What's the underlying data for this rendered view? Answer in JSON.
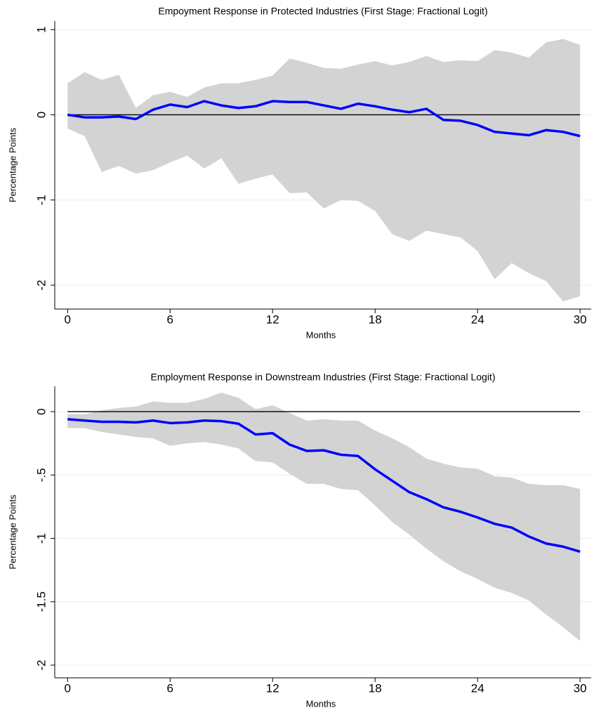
{
  "chart_data": [
    {
      "type": "line",
      "title": "Empoyment Response in Protected Industries (First Stage: Fractional Logit)",
      "xlabel": "Months",
      "ylabel": "Percentage Points",
      "x": [
        0,
        1,
        2,
        3,
        4,
        5,
        6,
        7,
        8,
        9,
        10,
        11,
        12,
        13,
        14,
        15,
        16,
        17,
        18,
        19,
        20,
        21,
        22,
        23,
        24,
        25,
        26,
        27,
        28,
        29,
        30
      ],
      "xlim": [
        -0.75,
        30.65
      ],
      "xticks": [
        0,
        6,
        12,
        18,
        24,
        30
      ],
      "ylim": [
        -2.28,
        1.1
      ],
      "yticks": [
        -2,
        -1,
        0,
        1
      ],
      "grid": true,
      "hline": 0,
      "hline_color": "#000000",
      "band": {
        "color": "#d3d3d3",
        "upper": [
          0.37,
          0.5,
          0.41,
          0.47,
          0.08,
          0.23,
          0.27,
          0.21,
          0.32,
          0.37,
          0.37,
          0.41,
          0.46,
          0.66,
          0.61,
          0.55,
          0.54,
          0.59,
          0.63,
          0.58,
          0.62,
          0.69,
          0.62,
          0.64,
          0.63,
          0.76,
          0.73,
          0.67,
          0.85,
          0.89,
          0.82
        ],
        "lower": [
          -0.16,
          -0.25,
          -0.67,
          -0.6,
          -0.69,
          -0.65,
          -0.56,
          -0.48,
          -0.63,
          -0.51,
          -0.81,
          -0.75,
          -0.7,
          -0.92,
          -0.91,
          -1.1,
          -1.0,
          -1.01,
          -1.13,
          -1.4,
          -1.48,
          -1.36,
          -1.4,
          -1.44,
          -1.6,
          -1.93,
          -1.74,
          -1.86,
          -1.95,
          -2.19,
          -2.13
        ]
      },
      "series": [
        {
          "color": "#0000ff",
          "values": [
            0,
            -0.03,
            -0.03,
            -0.02,
            -0.05,
            0.06,
            0.12,
            0.09,
            0.16,
            0.11,
            0.08,
            0.1,
            0.16,
            0.15,
            0.15,
            0.11,
            0.07,
            0.13,
            0.1,
            0.06,
            0.03,
            0.07,
            -0.06,
            -0.07,
            -0.12,
            -0.2,
            -0.22,
            -0.24,
            -0.18,
            -0.2,
            -0.25
          ]
        }
      ]
    },
    {
      "type": "line",
      "title": "Employment Response in Downstream Industries (First Stage: Fractional Logit)",
      "xlabel": "Months",
      "ylabel": "Percentage Points",
      "x": [
        0,
        1,
        2,
        3,
        4,
        5,
        6,
        7,
        8,
        9,
        10,
        11,
        12,
        13,
        14,
        15,
        16,
        17,
        18,
        19,
        20,
        21,
        22,
        23,
        24,
        25,
        26,
        27,
        28,
        29,
        30
      ],
      "xlim": [
        -0.75,
        30.65
      ],
      "xticks": [
        0,
        6,
        12,
        18,
        24,
        30
      ],
      "ylim": [
        -2.1,
        0.2
      ],
      "yticks": [
        -2,
        -1.5,
        -1,
        {
          "value": -0.5,
          "label": "-.5"
        },
        0
      ],
      "grid": true,
      "hline": 0,
      "hline_color": "#000000",
      "band": {
        "color": "#d3d3d3",
        "upper": [
          -0.02,
          -0.02,
          0.01,
          0.03,
          0.04,
          0.08,
          0.07,
          0.07,
          0.1,
          0.15,
          0.11,
          0.02,
          0.05,
          -0.01,
          -0.07,
          -0.06,
          -0.07,
          -0.07,
          -0.15,
          -0.21,
          -0.28,
          -0.37,
          -0.41,
          -0.44,
          -0.45,
          -0.51,
          -0.52,
          -0.57,
          -0.58,
          -0.58,
          -0.61
        ],
        "lower": [
          -0.13,
          -0.13,
          -0.16,
          -0.18,
          -0.2,
          -0.21,
          -0.27,
          -0.25,
          -0.24,
          -0.26,
          -0.29,
          -0.39,
          -0.4,
          -0.49,
          -0.57,
          -0.57,
          -0.61,
          -0.62,
          -0.74,
          -0.87,
          -0.97,
          -1.08,
          -1.18,
          -1.26,
          -1.32,
          -1.39,
          -1.43,
          -1.49,
          -1.6,
          -1.7,
          -1.81
        ]
      },
      "series": [
        {
          "color": "#0000ff",
          "values": [
            -0.06,
            -0.07,
            -0.08,
            -0.08,
            -0.085,
            -0.07,
            -0.09,
            -0.085,
            -0.07,
            -0.075,
            -0.095,
            -0.18,
            -0.17,
            -0.26,
            -0.31,
            -0.305,
            -0.34,
            -0.35,
            -0.455,
            -0.545,
            -0.635,
            -0.69,
            -0.755,
            -0.79,
            -0.835,
            -0.885,
            -0.915,
            -0.985,
            -1.04,
            -1.065,
            -1.105
          ]
        }
      ]
    }
  ]
}
